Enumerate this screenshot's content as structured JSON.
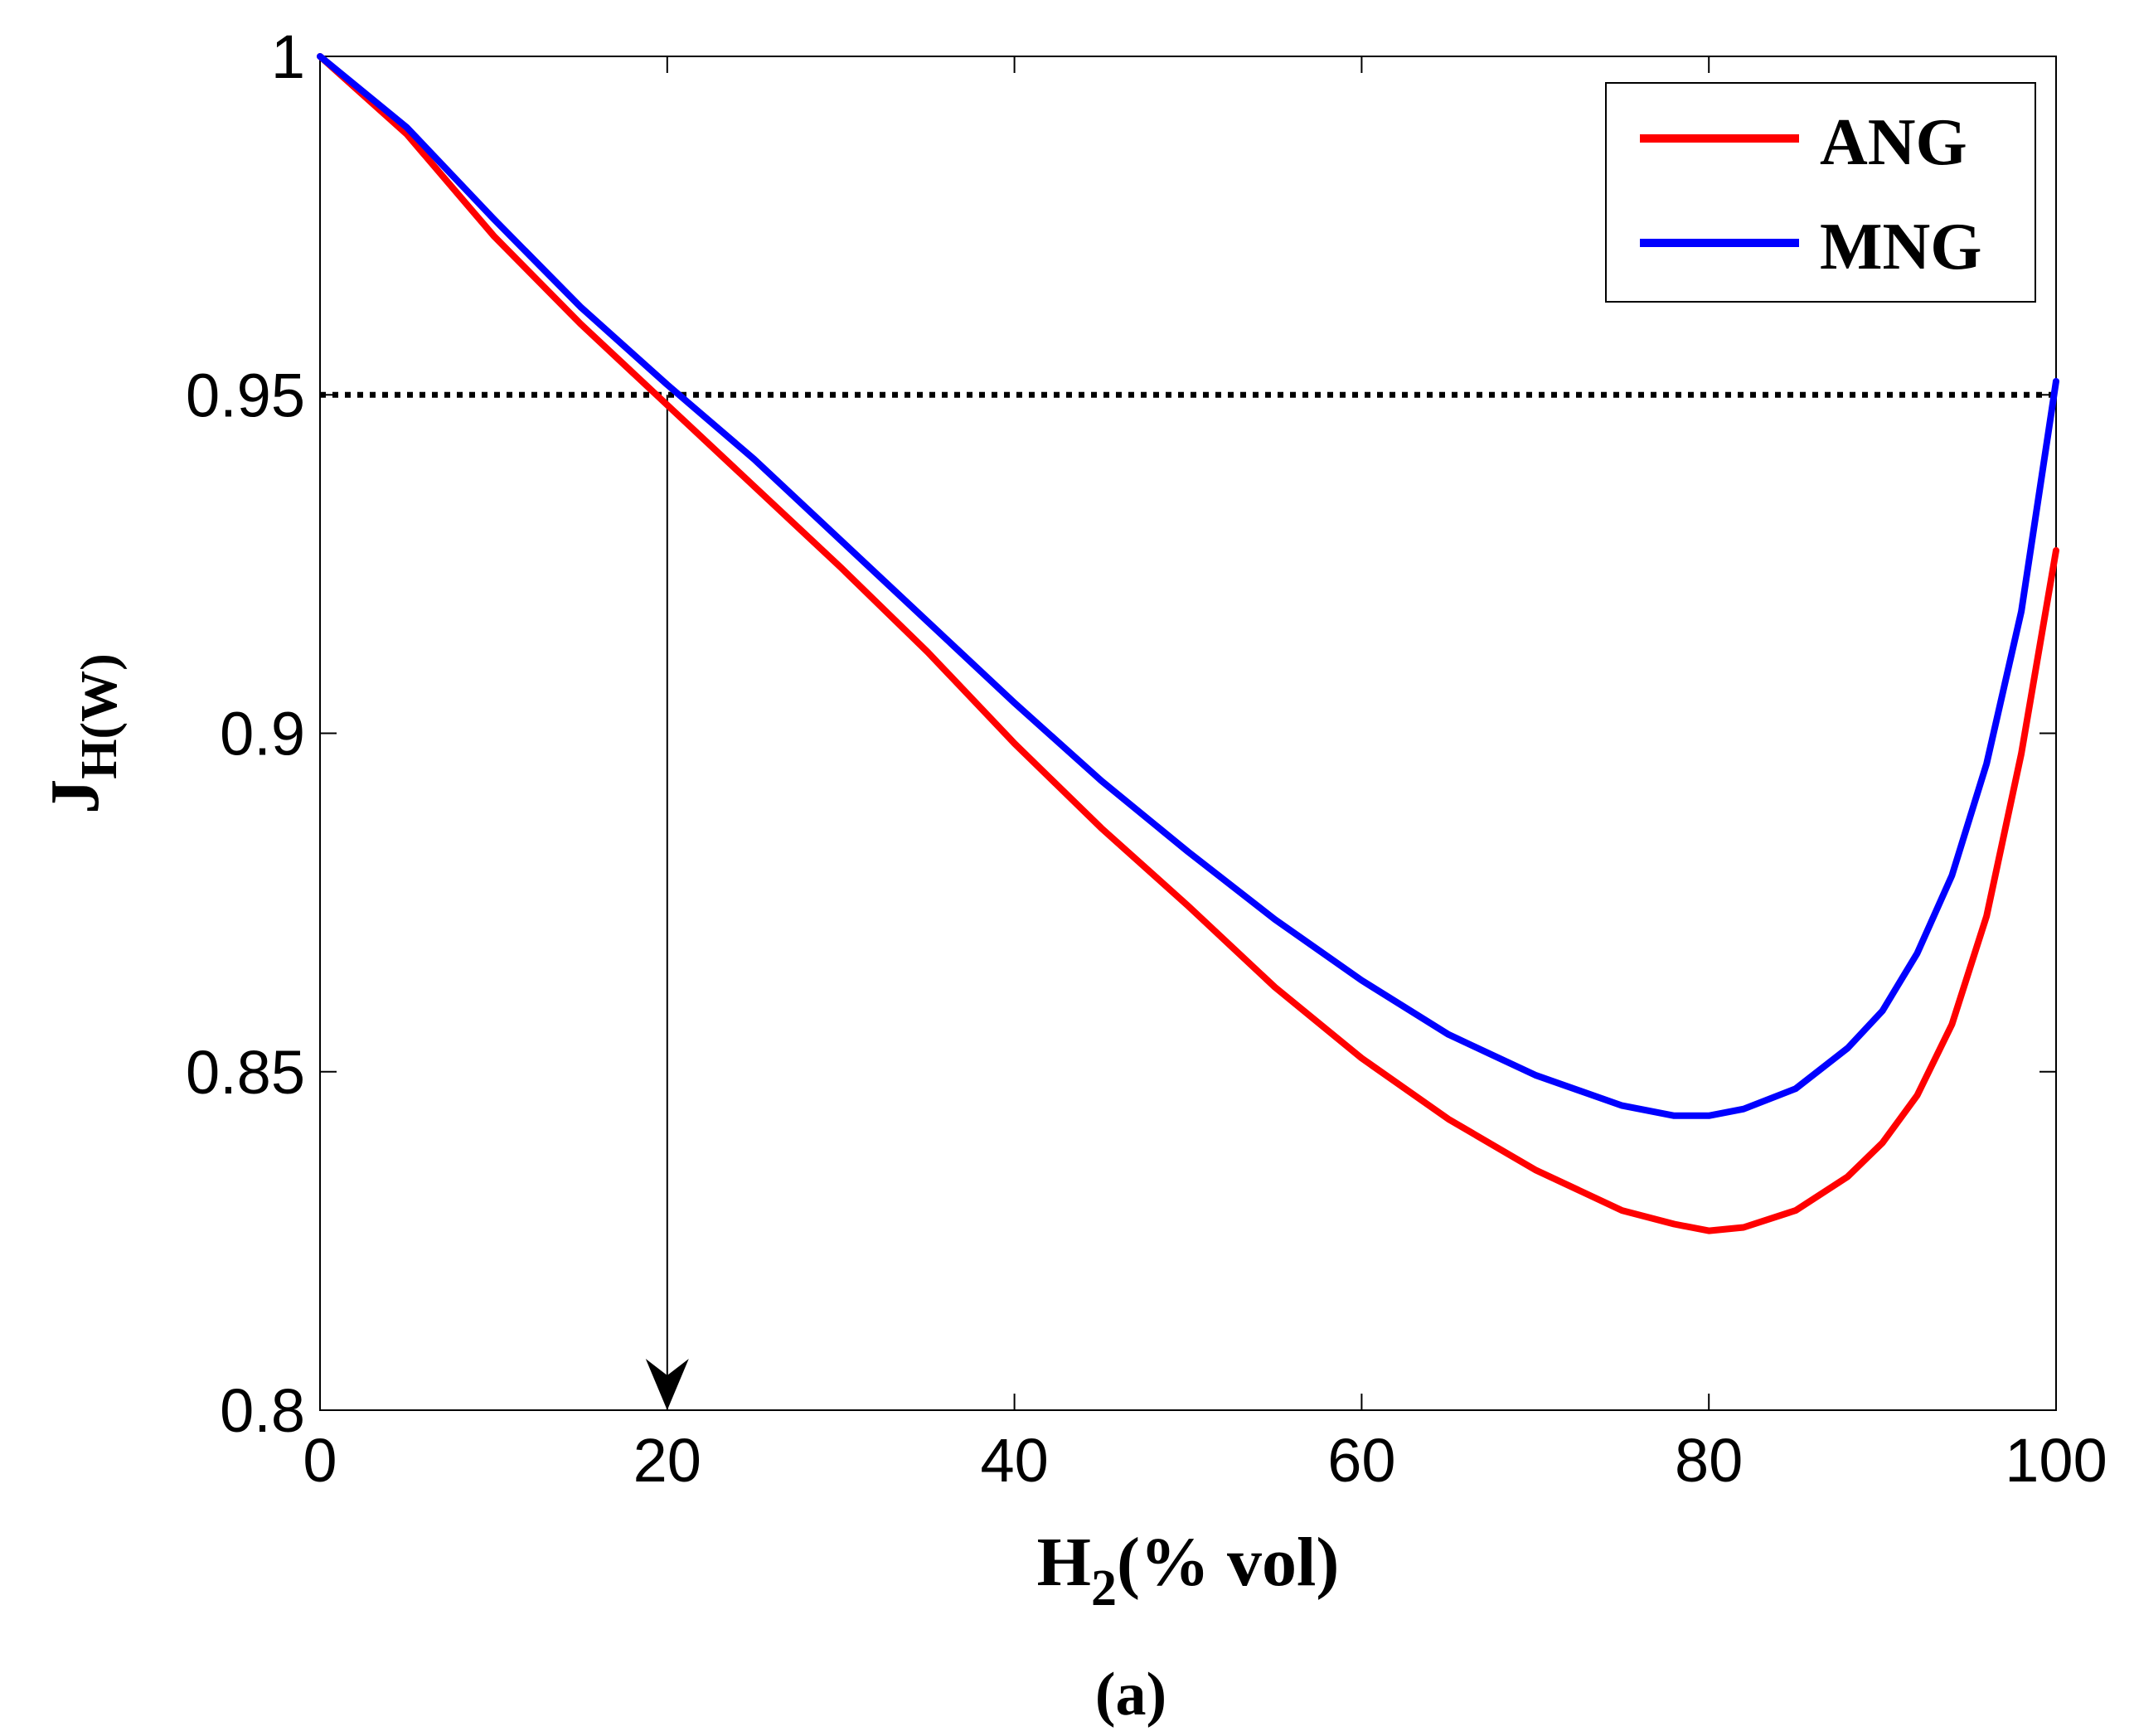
{
  "chart_data": {
    "type": "line",
    "title": "",
    "xlabel": {
      "main": "H",
      "sub": "2",
      "rest": "(% vol)"
    },
    "ylabel": {
      "main": "J",
      "sub": "H(W)"
    },
    "caption": "(a)",
    "xlim": [
      0,
      100
    ],
    "ylim": [
      0.8,
      1.0
    ],
    "xticks": [
      0,
      20,
      40,
      60,
      80,
      100
    ],
    "xtick_labels": [
      "0",
      "20",
      "40",
      "60",
      "80",
      "100"
    ],
    "yticks": [
      0.8,
      0.85,
      0.9,
      0.95,
      1.0
    ],
    "ytick_labels": [
      "0.8",
      "0.85",
      "0.9",
      "0.95",
      "1"
    ],
    "legend_position": "top-right",
    "reference_line": {
      "y": 0.95,
      "style": "dotted"
    },
    "annotation_arrow": {
      "x": 20,
      "from_y": 0.95,
      "to_y": 0.8
    },
    "series": [
      {
        "name": "ANG",
        "color": "#ff0000",
        "x": [
          0,
          5,
          10,
          15,
          20,
          25,
          30,
          35,
          40,
          45,
          50,
          55,
          60,
          65,
          70,
          75,
          78,
          80,
          82,
          85,
          88,
          90,
          92,
          94,
          96,
          98,
          100
        ],
        "y": [
          1.0,
          0.9885,
          0.9735,
          0.9605,
          0.9485,
          0.9365,
          0.9245,
          0.912,
          0.8985,
          0.886,
          0.8745,
          0.8625,
          0.852,
          0.843,
          0.8355,
          0.8295,
          0.8275,
          0.8265,
          0.827,
          0.8295,
          0.8345,
          0.8395,
          0.8465,
          0.857,
          0.873,
          0.897,
          0.927
        ]
      },
      {
        "name": "MNG",
        "color": "#0000ff",
        "x": [
          0,
          5,
          10,
          15,
          20,
          25,
          30,
          35,
          40,
          45,
          50,
          55,
          60,
          65,
          70,
          75,
          78,
          80,
          82,
          85,
          88,
          90,
          92,
          94,
          96,
          98,
          100
        ],
        "y": [
          1.0,
          0.9895,
          0.976,
          0.963,
          0.9515,
          0.9405,
          0.9285,
          0.9165,
          0.9045,
          0.893,
          0.8825,
          0.8725,
          0.8635,
          0.8555,
          0.8495,
          0.845,
          0.8435,
          0.8435,
          0.8445,
          0.8475,
          0.8535,
          0.859,
          0.8675,
          0.879,
          0.8955,
          0.918,
          0.952
        ]
      }
    ]
  }
}
